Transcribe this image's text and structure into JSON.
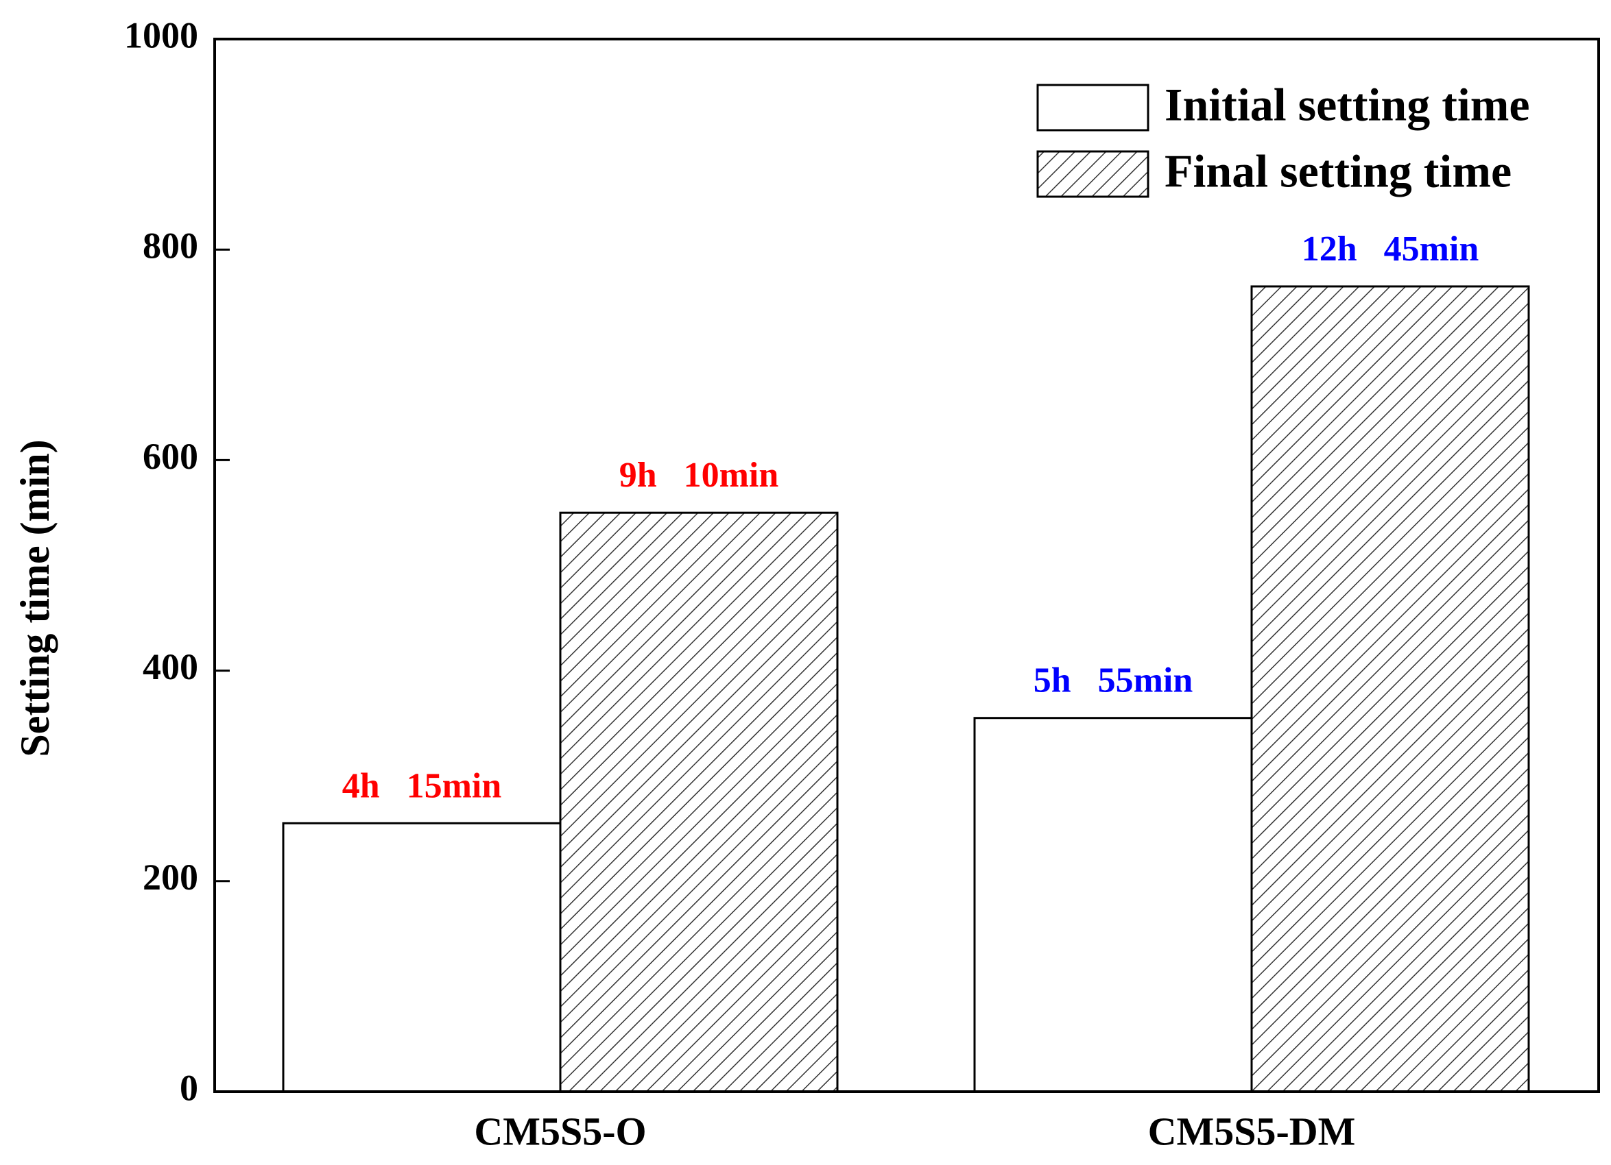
{
  "chart_data": {
    "type": "bar",
    "y_label": "Setting time (min)",
    "categories": [
      "CM5S5-O",
      "CM5S5-DM"
    ],
    "series": [
      {
        "name": "Initial setting time",
        "color": "#ffffff",
        "pattern": "none",
        "values": [
          255,
          355
        ],
        "value_labels": [
          "4h   15min",
          "5h   55min"
        ]
      },
      {
        "name": "Final setting time",
        "color": "#ffffff",
        "pattern": "hatch",
        "values": [
          550,
          765
        ],
        "value_labels": [
          "9h   10min",
          "12h   45min"
        ]
      }
    ],
    "value_label_colors": [
      "#ff0000",
      "#0000ff"
    ],
    "ylim": [
      0,
      1000
    ],
    "yticks": [
      0,
      200,
      400,
      600,
      800,
      1000
    ],
    "legend": "upper right",
    "grid": false
  }
}
